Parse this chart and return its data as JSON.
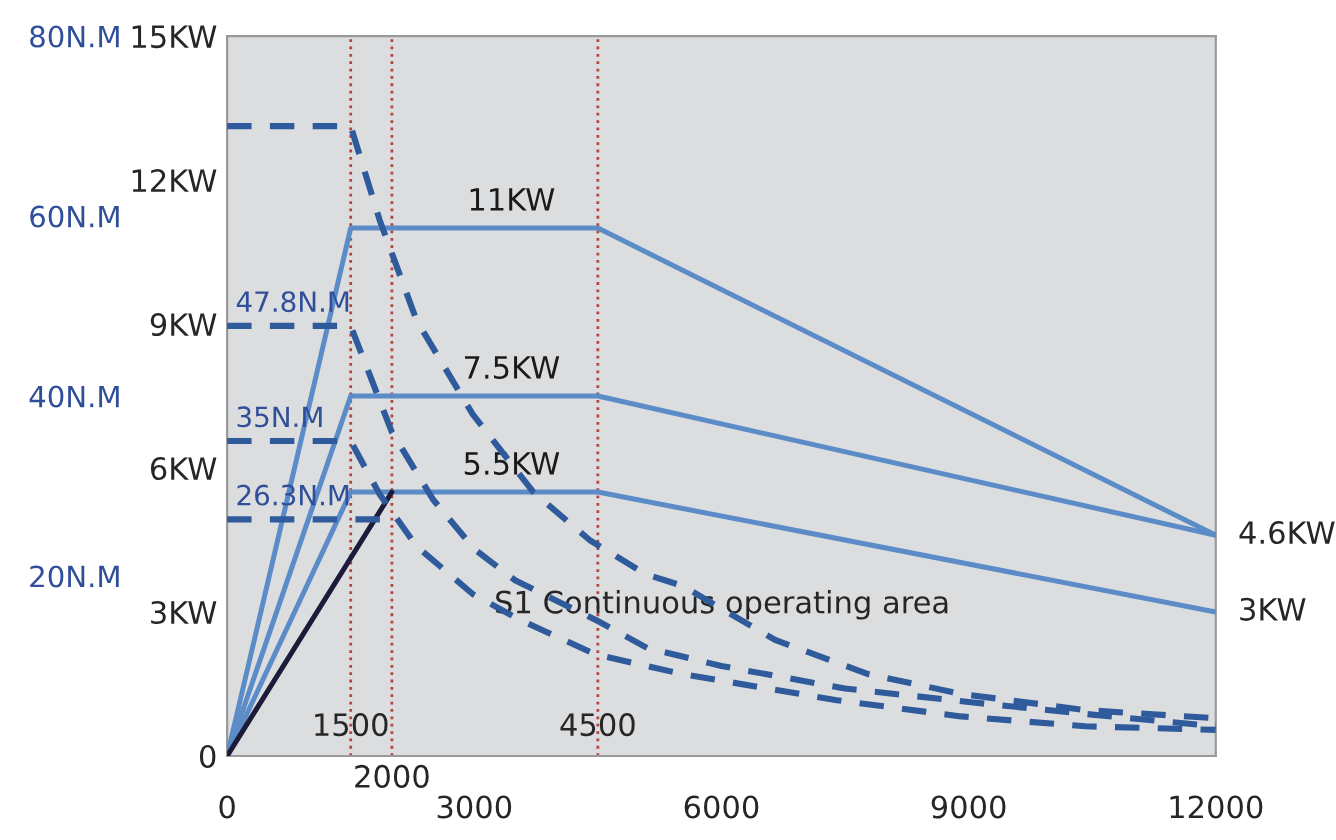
{
  "chart_data": {
    "type": "line",
    "series": [
      {
        "name": "11KW",
        "color": "#5b8cc8",
        "axis": "y",
        "line_style": "solid",
        "x": [
          0,
          1500,
          4500,
          12000
        ],
        "values": [
          0,
          11,
          11,
          4.6
        ]
      },
      {
        "name": "7.5KW",
        "color": "#5b8cc8",
        "axis": "y",
        "line_style": "solid",
        "x": [
          0,
          1500,
          4500,
          12000
        ],
        "values": [
          0,
          7.5,
          7.5,
          4.6
        ]
      },
      {
        "name": "5.5KW",
        "color": "#5b8cc8",
        "axis": "y",
        "line_style": "solid",
        "x": [
          0,
          1500,
          4500,
          12000
        ],
        "values": [
          0,
          5.5,
          5.5,
          3
        ]
      },
      {
        "color": "#1c1c3a",
        "axis": "y",
        "line_style": "solid",
        "x": [
          0,
          2000
        ],
        "values": [
          0,
          5.5
        ]
      },
      {
        "color": "#2f5b9c",
        "axis": "y2",
        "line_style": "dashed",
        "x": [
          0,
          1500,
          1850,
          2300,
          2980,
          3720,
          4400,
          5080,
          5530,
          6650,
          7780,
          8910,
          10420,
          12000
        ],
        "values": [
          70,
          70,
          59.6,
          48.4,
          38,
          29.3,
          24,
          20.2,
          18.9,
          12.9,
          9.1,
          6.9,
          5.1,
          4.2
        ]
      },
      {
        "name": "47.8N.M",
        "color": "#2f5b9c",
        "axis": "y2",
        "line_style": "dashed",
        "x": [
          0,
          1500,
          2000,
          2500,
          3000,
          3500,
          4500,
          5100,
          6000,
          7500,
          9000,
          10500,
          12000
        ],
        "values": [
          47.8,
          47.8,
          36,
          28.5,
          23,
          19.5,
          15,
          12,
          10,
          7.5,
          6,
          4.6,
          3.3
        ]
      },
      {
        "name": "35N.M",
        "color": "#2f5b9c",
        "axis": "y2",
        "line_style": "dashed",
        "x": [
          0,
          1500,
          1850,
          2300,
          2980,
          3560,
          4470,
          5530,
          7400,
          8910,
          10420,
          12000
        ],
        "values": [
          35,
          35,
          29.1,
          23.3,
          18,
          15.1,
          11.3,
          9.1,
          6.2,
          4.4,
          3.3,
          2.9
        ]
      },
      {
        "name": "26.3N.M",
        "color": "#2f5b9c",
        "axis": "y2",
        "line_style": "dashed",
        "x": [
          0,
          2000
        ],
        "values": [
          26.3,
          26.3
        ]
      }
    ],
    "xlim": [
      0,
      12000
    ],
    "xticks": [
      0,
      3000,
      6000,
      9000,
      12000
    ],
    "ylim": [
      0,
      15
    ],
    "yticks": [
      0,
      {
        "value": 3,
        "label": "3KW"
      },
      {
        "value": 6,
        "label": "6KW"
      },
      {
        "value": 9,
        "label": "9KW"
      },
      {
        "value": 12,
        "label": "12KW"
      },
      {
        "value": 15,
        "label": "15KW"
      }
    ],
    "y2lim": [
      0,
      80
    ],
    "y2ticks": [
      {
        "value": 20,
        "label": "20N.M"
      },
      {
        "value": 40,
        "label": "40N.M"
      },
      {
        "value": 60,
        "label": "60N.M"
      },
      {
        "value": 80,
        "label": "80N.M"
      }
    ],
    "ref_lines": [
      {
        "axis": "x",
        "value": 1500,
        "label": "1500",
        "color": "#b5443c",
        "line_style": "dotted"
      },
      {
        "axis": "x",
        "value": 2000,
        "label": "2000",
        "color": "#b5443c",
        "line_style": "dotted"
      },
      {
        "axis": "x",
        "value": 4500,
        "label": "4500",
        "color": "#b5443c",
        "line_style": "dotted"
      }
    ],
    "annotations": [
      {
        "text": "4.6KW",
        "x": 12000,
        "y": 4.6
      },
      {
        "text": "3KW",
        "x": 12000,
        "y": 3
      },
      "S1 Continuous operating area"
    ],
    "grid": false,
    "legend": false,
    "marker": "none"
  }
}
